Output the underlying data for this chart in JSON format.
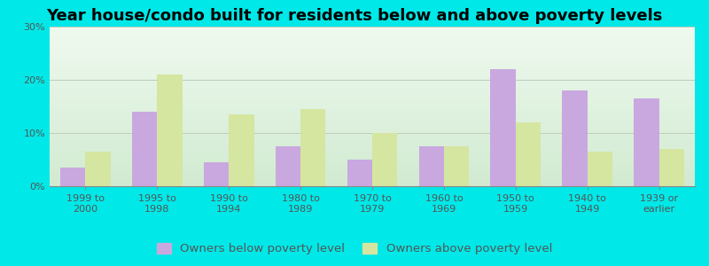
{
  "title": "Year house/condo built for residents below and above poverty levels",
  "categories": [
    "1999 to\n2000",
    "1995 to\n1998",
    "1990 to\n1994",
    "1980 to\n1989",
    "1970 to\n1979",
    "1960 to\n1969",
    "1950 to\n1959",
    "1940 to\n1949",
    "1939 or\nearlier"
  ],
  "below_poverty": [
    3.5,
    14.0,
    4.5,
    7.5,
    5.0,
    7.5,
    22.0,
    18.0,
    16.5
  ],
  "above_poverty": [
    6.5,
    21.0,
    13.5,
    14.5,
    10.0,
    7.5,
    12.0,
    6.5,
    7.0
  ],
  "below_color": "#c9a8e0",
  "above_color": "#d4e6a0",
  "background_outer": "#00e8e8",
  "grid_color": "#bbccbb",
  "title_fontsize": 13,
  "tick_fontsize": 8,
  "legend_fontsize": 9.5,
  "ylim": [
    0,
    30
  ],
  "yticks": [
    0,
    10,
    20,
    30
  ],
  "bar_width": 0.35,
  "legend_below_label": "Owners below poverty level",
  "legend_above_label": "Owners above poverty level"
}
